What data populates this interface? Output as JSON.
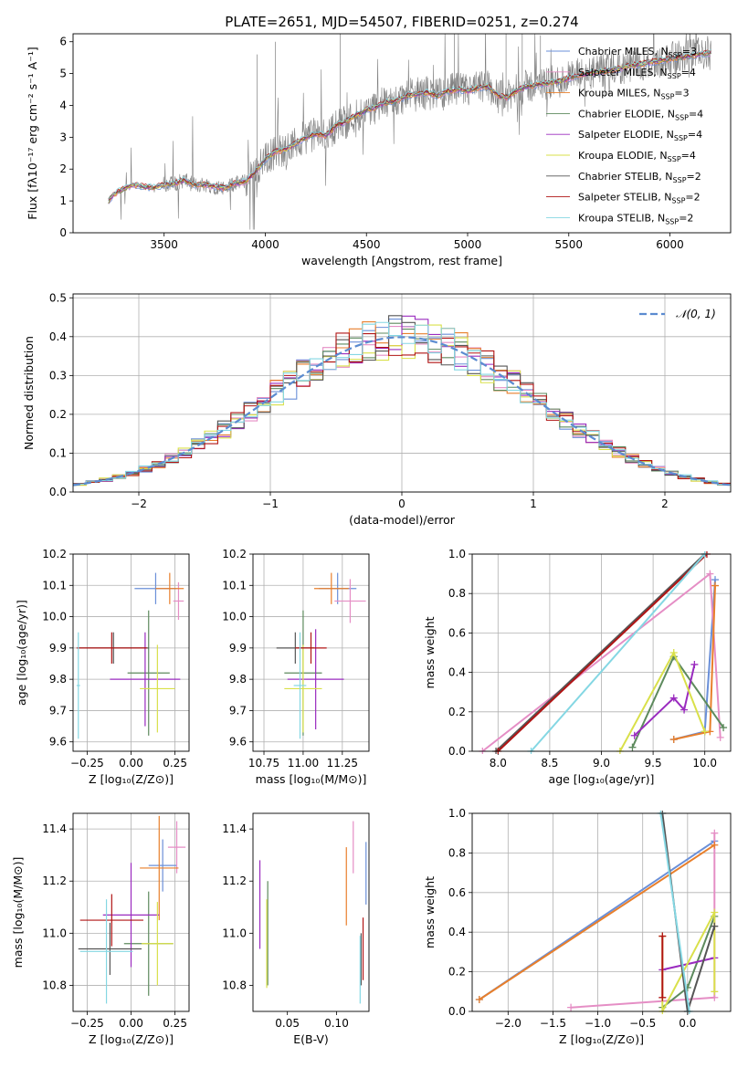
{
  "figure": {
    "colors": {
      "chabrier_miles": "#6a8fd8",
      "salpeter_miles": "#e58ec5",
      "kroupa_miles": "#e87f2b",
      "chabrier_elodie": "#5d8a5d",
      "salpeter_elodie": "#9a2bbf",
      "kroupa_elodie": "#d9e04a",
      "chabrier_stelib": "#555555",
      "salpeter_stelib": "#b11414",
      "kroupa_stelib": "#84d7e3",
      "data": "#808080",
      "normal": "#5b8bd0"
    }
  },
  "chart_data": [
    {
      "id": "spectrum",
      "type": "line",
      "title": "PLATE=2651, MJD=54507, FIBERID=0251, z=0.274",
      "xlabel": "wavelength [Angstrom, rest frame]",
      "ylabel": "Flux [fλ10⁻¹⁷ erg cm⁻² s⁻¹ A⁻¹]",
      "xlim": [
        3050,
        6300
      ],
      "ylim": [
        0,
        6.25
      ],
      "xticks": [
        "3500",
        "4000",
        "4500",
        "5000",
        "5500",
        "6000"
      ],
      "yticks": [
        "0",
        "1",
        "2",
        "3",
        "4",
        "5",
        "6"
      ],
      "grid": false,
      "legend_position": "right",
      "series": [
        {
          "name": "Chabrier MILES, N",
          "sub": "SSP",
          "suffix": "=3",
          "color": "#6a8fd8"
        },
        {
          "name": "Salpeter MILES, N",
          "sub": "SSP",
          "suffix": "=4",
          "color": "#e58ec5"
        },
        {
          "name": "Kroupa MILES, N",
          "sub": "SSP",
          "suffix": "=3",
          "color": "#e87f2b"
        },
        {
          "name": "Chabrier ELODIE, N",
          "sub": "SSP",
          "suffix": "=4",
          "color": "#5d8a5d"
        },
        {
          "name": "Salpeter ELODIE, N",
          "sub": "SSP",
          "suffix": "=4",
          "color": "#9a2bbf"
        },
        {
          "name": "Kroupa ELODIE, N",
          "sub": "SSP",
          "suffix": "=4",
          "color": "#d9e04a"
        },
        {
          "name": "Chabrier STELIB, N",
          "sub": "SSP",
          "suffix": "=2",
          "color": "#555555"
        },
        {
          "name": "Salpeter STELIB, N",
          "sub": "SSP",
          "suffix": "=2",
          "color": "#b11414"
        },
        {
          "name": "Kroupa STELIB, N",
          "sub": "SSP",
          "suffix": "=2",
          "color": "#84d7e3"
        }
      ],
      "model_trend": [
        [
          3220,
          0.95
        ],
        [
          3250,
          1.2
        ],
        [
          3300,
          1.38
        ],
        [
          3350,
          1.5
        ],
        [
          3400,
          1.45
        ],
        [
          3450,
          1.42
        ],
        [
          3500,
          1.5
        ],
        [
          3550,
          1.55
        ],
        [
          3600,
          1.65
        ],
        [
          3650,
          1.5
        ],
        [
          3700,
          1.52
        ],
        [
          3750,
          1.45
        ],
        [
          3800,
          1.4
        ],
        [
          3850,
          1.55
        ],
        [
          3900,
          1.6
        ],
        [
          3950,
          1.9
        ],
        [
          4000,
          2.3
        ],
        [
          4050,
          2.55
        ],
        [
          4100,
          2.6
        ],
        [
          4150,
          2.8
        ],
        [
          4200,
          3.0
        ],
        [
          4250,
          3.1
        ],
        [
          4300,
          3.05
        ],
        [
          4350,
          3.35
        ],
        [
          4400,
          3.5
        ],
        [
          4450,
          3.7
        ],
        [
          4500,
          3.85
        ],
        [
          4550,
          3.95
        ],
        [
          4600,
          4.1
        ],
        [
          4650,
          4.15
        ],
        [
          4700,
          4.3
        ],
        [
          4750,
          4.35
        ],
        [
          4800,
          4.4
        ],
        [
          4850,
          4.3
        ],
        [
          4900,
          4.45
        ],
        [
          4950,
          4.5
        ],
        [
          5000,
          4.45
        ],
        [
          5050,
          4.55
        ],
        [
          5100,
          4.6
        ],
        [
          5150,
          4.3
        ],
        [
          5200,
          4.25
        ],
        [
          5250,
          4.5
        ],
        [
          5300,
          4.6
        ],
        [
          5350,
          4.65
        ],
        [
          5400,
          4.7
        ],
        [
          5450,
          4.75
        ],
        [
          5500,
          4.85
        ],
        [
          5550,
          4.95
        ],
        [
          5600,
          5.0
        ],
        [
          5650,
          5.05
        ],
        [
          5700,
          5.1
        ],
        [
          5750,
          5.15
        ],
        [
          5800,
          5.25
        ],
        [
          5850,
          5.3
        ],
        [
          5900,
          5.35
        ],
        [
          5950,
          5.4
        ],
        [
          6000,
          5.45
        ],
        [
          6050,
          5.5
        ],
        [
          6100,
          5.55
        ],
        [
          6150,
          5.6
        ],
        [
          6200,
          5.65
        ]
      ]
    },
    {
      "id": "residuals",
      "type": "histogram",
      "xlabel": "(data-model)/error",
      "ylabel": "Normed distribution",
      "xlim": [
        -2.5,
        2.5
      ],
      "ylim": [
        0,
        0.51
      ],
      "xticks": [
        "−2",
        "−1",
        "0",
        "1",
        "2"
      ],
      "yticks": [
        "0.0",
        "0.1",
        "0.2",
        "0.3",
        "0.4",
        "0.5"
      ],
      "grid": true,
      "legend": "𝒩(0, 1)",
      "legend_position": "top-right",
      "bin_width": 0.1,
      "bin_start": -2.5
    },
    {
      "id": "age_vs_Z",
      "type": "errorbar",
      "xlabel": "Z [log₁₀(Z/Z⊙)]",
      "ylabel": "age  [log₁₀(age/yr)]",
      "xlim": [
        -0.33,
        0.33
      ],
      "ylim": [
        9.57,
        10.2
      ],
      "xticks": [
        "−0.25",
        "0.00",
        "0.25"
      ],
      "yticks": [
        "9.6",
        "9.7",
        "9.8",
        "9.9",
        "10.0",
        "10.1",
        "10.2"
      ],
      "grid": true,
      "points": [
        {
          "c": "#6a8fd8",
          "x": 0.14,
          "xe": 0.12,
          "y": 10.09,
          "ye": 0.05
        },
        {
          "c": "#e58ec5",
          "x": 0.27,
          "xe": 0.03,
          "y": 10.05,
          "ye": 0.06
        },
        {
          "c": "#e87f2b",
          "x": 0.22,
          "xe": 0.08,
          "y": 10.09,
          "ye": 0.05
        },
        {
          "c": "#5d8a5d",
          "x": 0.1,
          "xe": 0.12,
          "y": 9.82,
          "ye": 0.2
        },
        {
          "c": "#9a2bbf",
          "x": 0.08,
          "xe": 0.2,
          "y": 9.8,
          "ye": 0.15
        },
        {
          "c": "#d9e04a",
          "x": 0.15,
          "xe": 0.1,
          "y": 9.77,
          "ye": 0.14
        },
        {
          "c": "#555555",
          "x": -0.1,
          "xe": 0.2,
          "y": 9.9,
          "ye": 0.05
        },
        {
          "c": "#b11414",
          "x": -0.11,
          "xe": 0.2,
          "y": 9.9,
          "ye": 0.05
        },
        {
          "c": "#84d7e3",
          "x": -0.3,
          "xe": 0.01,
          "y": 9.78,
          "ye": 0.17
        }
      ]
    },
    {
      "id": "age_vs_mass",
      "type": "errorbar",
      "xlabel": "mass [log₁₀(M/M⊙)]",
      "ylabel": "",
      "xlim": [
        10.68,
        11.42
      ],
      "ylim": [
        9.57,
        10.2
      ],
      "xticks": [
        "10.75",
        "11.00",
        "11.25"
      ],
      "yticks": [
        "9.6",
        "9.7",
        "9.8",
        "9.9",
        "10.0",
        "10.1",
        "10.2"
      ],
      "grid": true,
      "points": [
        {
          "c": "#6a8fd8",
          "x": 11.22,
          "xe": 0.12,
          "y": 10.09,
          "ye": 0.05
        },
        {
          "c": "#e58ec5",
          "x": 11.3,
          "xe": 0.1,
          "y": 10.05,
          "ye": 0.07
        },
        {
          "c": "#e87f2b",
          "x": 11.18,
          "xe": 0.11,
          "y": 10.09,
          "ye": 0.05
        },
        {
          "c": "#5d8a5d",
          "x": 11.0,
          "xe": 0.12,
          "y": 9.82,
          "ye": 0.2
        },
        {
          "c": "#9a2bbf",
          "x": 11.08,
          "xe": 0.18,
          "y": 9.8,
          "ye": 0.16
        },
        {
          "c": "#d9e04a",
          "x": 11.0,
          "xe": 0.12,
          "y": 9.77,
          "ye": 0.14
        },
        {
          "c": "#555555",
          "x": 10.95,
          "xe": 0.12,
          "y": 9.9,
          "ye": 0.05
        },
        {
          "c": "#b11414",
          "x": 11.05,
          "xe": 0.1,
          "y": 9.9,
          "ye": 0.05
        },
        {
          "c": "#84d7e3",
          "x": 10.98,
          "xe": 0.04,
          "y": 9.78,
          "ye": 0.17
        }
      ]
    },
    {
      "id": "weight_vs_age",
      "type": "line",
      "xlabel": "age  [log₁₀(age/yr)]",
      "ylabel": "mass weight",
      "xlim": [
        7.75,
        10.25
      ],
      "ylim": [
        0,
        1.0
      ],
      "xticks": [
        "8.0",
        "8.5",
        "9.0",
        "9.5",
        "10.0"
      ],
      "yticks": [
        "0.0",
        "0.2",
        "0.4",
        "0.6",
        "0.8",
        "1.0"
      ],
      "grid": true,
      "series": [
        {
          "c": "#6a8fd8",
          "pts": [
            [
              9.7,
              0.06
            ],
            [
              10.0,
              0.1
            ],
            [
              10.1,
              0.87
            ]
          ]
        },
        {
          "c": "#e58ec5",
          "pts": [
            [
              7.85,
              0.0
            ],
            [
              10.05,
              0.9
            ],
            [
              10.15,
              0.07
            ]
          ]
        },
        {
          "c": "#e87f2b",
          "pts": [
            [
              9.7,
              0.06
            ],
            [
              10.05,
              0.1
            ],
            [
              10.1,
              0.84
            ]
          ]
        },
        {
          "c": "#5d8a5d",
          "pts": [
            [
              9.3,
              0.02
            ],
            [
              9.7,
              0.48
            ],
            [
              10.18,
              0.12
            ]
          ]
        },
        {
          "c": "#9a2bbf",
          "pts": [
            [
              9.32,
              0.08
            ],
            [
              9.7,
              0.27
            ],
            [
              9.8,
              0.21
            ],
            [
              9.9,
              0.44
            ]
          ]
        },
        {
          "c": "#d9e04a",
          "pts": [
            [
              9.18,
              0.0
            ],
            [
              9.7,
              0.5
            ],
            [
              10.0,
              0.1
            ]
          ]
        },
        {
          "c": "#555555",
          "pts": [
            [
              7.98,
              0.0
            ],
            [
              10.0,
              1.0
            ]
          ]
        },
        {
          "c": "#b11414",
          "pts": [
            [
              8.0,
              0.0
            ],
            [
              10.02,
              1.0
            ]
          ]
        },
        {
          "c": "#84d7e3",
          "pts": [
            [
              8.32,
              0.0
            ],
            [
              10.0,
              1.0
            ]
          ]
        }
      ]
    },
    {
      "id": "mass_vs_Z",
      "type": "errorbar",
      "xlabel": "Z [log₁₀(Z/Z⊙)]",
      "ylabel": "mass [log₁₀(M/M⊙)]",
      "xlim": [
        -0.33,
        0.33
      ],
      "ylim": [
        10.7,
        11.46
      ],
      "xticks": [
        "−0.25",
        "0.00",
        "0.25"
      ],
      "yticks": [
        "10.8",
        "11.0",
        "11.2",
        "11.4"
      ],
      "grid": true,
      "points": [
        {
          "c": "#6a8fd8",
          "x": 0.18,
          "xe": 0.08,
          "y": 11.26,
          "ye": 0.1
        },
        {
          "c": "#e58ec5",
          "x": 0.26,
          "xe": 0.05,
          "y": 11.33,
          "ye": 0.1
        },
        {
          "c": "#e87f2b",
          "x": 0.16,
          "xe": 0.11,
          "y": 11.25,
          "ye": 0.2
        },
        {
          "c": "#5d8a5d",
          "x": 0.1,
          "xe": 0.14,
          "y": 10.96,
          "ye": 0.2
        },
        {
          "c": "#9a2bbf",
          "x": 0.0,
          "xe": 0.16,
          "y": 11.07,
          "ye": 0.2
        },
        {
          "c": "#d9e04a",
          "x": 0.15,
          "xe": 0.09,
          "y": 10.96,
          "ye": 0.16
        },
        {
          "c": "#555555",
          "x": -0.12,
          "xe": 0.18,
          "y": 10.94,
          "ye": 0.1
        },
        {
          "c": "#b11414",
          "x": -0.11,
          "xe": 0.18,
          "y": 11.05,
          "ye": 0.1
        },
        {
          "c": "#84d7e3",
          "x": -0.14,
          "xe": 0.15,
          "y": 10.93,
          "ye": 0.2
        }
      ]
    },
    {
      "id": "mass_vs_ebv",
      "type": "errorbar",
      "xlabel": "E(B-V)",
      "ylabel": "",
      "xlim": [
        0.015,
        0.133
      ],
      "ylim": [
        10.7,
        11.46
      ],
      "xticks": [
        "0.05",
        "0.10"
      ],
      "yticks": [
        "10.8",
        "11.0",
        "11.2",
        "11.4"
      ],
      "grid": false,
      "points": [
        {
          "c": "#6a8fd8",
          "x": 0.13,
          "xe": 0,
          "y": 11.23,
          "ye": 0.12
        },
        {
          "c": "#e58ec5",
          "x": 0.117,
          "xe": 0,
          "y": 11.33,
          "ye": 0.1
        },
        {
          "c": "#e87f2b",
          "x": 0.11,
          "xe": 0,
          "y": 11.18,
          "ye": 0.15
        },
        {
          "c": "#5d8a5d",
          "x": 0.03,
          "xe": 0,
          "y": 11.0,
          "ye": 0.2
        },
        {
          "c": "#9a2bbf",
          "x": 0.022,
          "xe": 0,
          "y": 11.11,
          "ye": 0.17
        },
        {
          "c": "#d9e04a",
          "x": 0.029,
          "xe": 0,
          "y": 10.96,
          "ye": 0.17
        },
        {
          "c": "#555555",
          "x": 0.125,
          "xe": 0,
          "y": 10.9,
          "ye": 0.1
        },
        {
          "c": "#b11414",
          "x": 0.127,
          "xe": 0,
          "y": 10.94,
          "ye": 0.12
        },
        {
          "c": "#84d7e3",
          "x": 0.124,
          "xe": 0,
          "y": 10.86,
          "ye": 0.13
        }
      ]
    },
    {
      "id": "weight_vs_Z",
      "type": "line",
      "xlabel": "Z [log₁₀(Z/Z⊙)]",
      "ylabel": "mass weight",
      "xlim": [
        -2.4,
        0.48
      ],
      "ylim": [
        0,
        1.0
      ],
      "xticks": [
        "−2.0",
        "−1.5",
        "−1.0",
        "−0.5",
        "0.0"
      ],
      "yticks": [
        "0.0",
        "0.2",
        "0.4",
        "0.6",
        "0.8",
        "1.0"
      ],
      "grid": true,
      "series": [
        {
          "c": "#6a8fd8",
          "pts": [
            [
              -2.32,
              0.06
            ],
            [
              0.3,
              0.86
            ]
          ]
        },
        {
          "c": "#e58ec5",
          "pts": [
            [
              -1.3,
              0.02
            ],
            [
              0.3,
              0.07
            ],
            [
              0.3,
              0.9
            ]
          ]
        },
        {
          "c": "#e87f2b",
          "pts": [
            [
              -2.32,
              0.06
            ],
            [
              0.3,
              0.84
            ]
          ]
        },
        {
          "c": "#5d8a5d",
          "pts": [
            [
              -0.28,
              0.02
            ],
            [
              0.0,
              0.12
            ],
            [
              0.3,
              0.48
            ]
          ]
        },
        {
          "c": "#9a2bbf",
          "pts": [
            [
              -0.28,
              0.21
            ],
            [
              0.3,
              0.27
            ]
          ]
        },
        {
          "c": "#d9e04a",
          "pts": [
            [
              -0.28,
              0.38
            ],
            [
              -0.28,
              0.0
            ],
            [
              0.3,
              0.5
            ],
            [
              0.3,
              0.1
            ]
          ]
        },
        {
          "c": "#555555",
          "pts": [
            [
              -0.28,
              1.0
            ],
            [
              0.0,
              0.0
            ],
            [
              0.3,
              0.43
            ]
          ]
        },
        {
          "c": "#b11414",
          "pts": [
            [
              -0.28,
              0.07
            ],
            [
              -0.28,
              0.38
            ]
          ]
        },
        {
          "c": "#84d7e3",
          "pts": [
            [
              -0.3,
              1.0
            ],
            [
              0.02,
              0.0
            ]
          ]
        }
      ]
    }
  ]
}
